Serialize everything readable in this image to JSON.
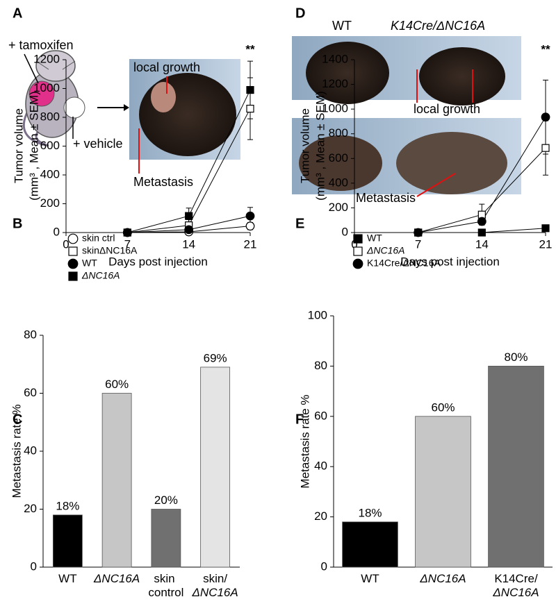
{
  "figures": {
    "A": {
      "panel": "A",
      "tamoxifen": "+ tamoxifen",
      "vehicle": "+ vehicle",
      "local_growth": "local growth",
      "metastasis": "Metastasis"
    },
    "D": {
      "panel": "D",
      "wt": "WT",
      "mutant": "K14Cre/ΔNC16A",
      "local_growth": "local growth",
      "metastasis": "Metastasis"
    }
  },
  "chart_data": [
    {
      "type": "line",
      "panel": "B",
      "xlabel": "Days post injection",
      "ylabel": [
        "Tumor volume",
        "(mm³ , Mean ± SEM)"
      ],
      "x": [
        7,
        14,
        21
      ],
      "xlim": [
        0,
        21
      ],
      "xticks": [
        0,
        7,
        14,
        21
      ],
      "ylim": [
        0,
        1200
      ],
      "yticks": [
        0,
        200,
        400,
        600,
        800,
        1000,
        1200
      ],
      "annotation": "**",
      "series": [
        {
          "name": "skin ctrl",
          "color": "#000000",
          "marker": "circle",
          "filled": false,
          "values": [
            0,
            5,
            45
          ],
          "errors": [
            null,
            null,
            25
          ]
        },
        {
          "name": "skinΔNC16A",
          "color": "#000000",
          "marker": "square",
          "filled": false,
          "values": [
            0,
            50,
            860
          ],
          "errors": [
            null,
            40,
            215
          ]
        },
        {
          "name": "WT",
          "color": "#000000",
          "marker": "circle",
          "filled": true,
          "values": [
            0,
            20,
            115
          ],
          "errors": [
            null,
            null,
            60
          ]
        },
        {
          "name": "ΔNC16A",
          "color": "#000000",
          "marker": "square",
          "filled": true,
          "values": [
            0,
            115,
            990
          ],
          "errors": [
            null,
            55,
            200
          ]
        }
      ]
    },
    {
      "type": "line",
      "panel": "E",
      "xlabel": "Days post injection",
      "ylabel": [
        "Tumor volume",
        "(mm³ , Mean ± SEM)"
      ],
      "x": [
        7,
        14,
        21
      ],
      "xlim": [
        0,
        21
      ],
      "xticks": [
        0,
        7,
        14,
        21
      ],
      "ylim": [
        0,
        1400
      ],
      "yticks": [
        0,
        200,
        400,
        600,
        800,
        1000,
        1200,
        1400
      ],
      "annotation": "**",
      "series": [
        {
          "name": "WT",
          "color": "#000000",
          "marker": "square",
          "filled": true,
          "values": [
            0,
            0,
            35
          ],
          "errors": [
            null,
            null,
            15
          ]
        },
        {
          "name": "ΔNC16A",
          "color": "#000000",
          "marker": "square",
          "filled": false,
          "values": [
            0,
            145,
            685
          ],
          "errors": [
            null,
            85,
            220
          ]
        },
        {
          "name": "K14Cre/ΔNC16A",
          "color": "#000000",
          "marker": "circle",
          "filled": true,
          "values": [
            0,
            90,
            935
          ],
          "errors": [
            null,
            null,
            300
          ]
        }
      ]
    },
    {
      "type": "bar",
      "panel": "C",
      "ylabel": "Metastasis rate %",
      "categories": [
        "WT",
        "ΔNC16A",
        "skin control",
        "skin/ΔNC16A"
      ],
      "values": [
        18,
        60,
        20,
        69
      ],
      "value_labels": [
        "18%",
        "60%",
        "20%",
        "69%"
      ],
      "colors": [
        "#000000",
        "#c6c6c6",
        "#707070",
        "#e4e4e4"
      ],
      "ylim": [
        0,
        80
      ],
      "yticks": [
        0,
        20,
        40,
        60,
        80
      ]
    },
    {
      "type": "bar",
      "panel": "F",
      "ylabel": "Metastasis rate %",
      "categories": [
        "WT",
        "ΔNC16A",
        "K14Cre/ΔNC16A"
      ],
      "values": [
        18,
        60,
        80
      ],
      "value_labels": [
        "18%",
        "60%",
        "80%"
      ],
      "colors": [
        "#000000",
        "#c6c6c6",
        "#707070"
      ],
      "ylim": [
        0,
        100
      ],
      "yticks": [
        0,
        20,
        40,
        60,
        80,
        100
      ]
    }
  ]
}
